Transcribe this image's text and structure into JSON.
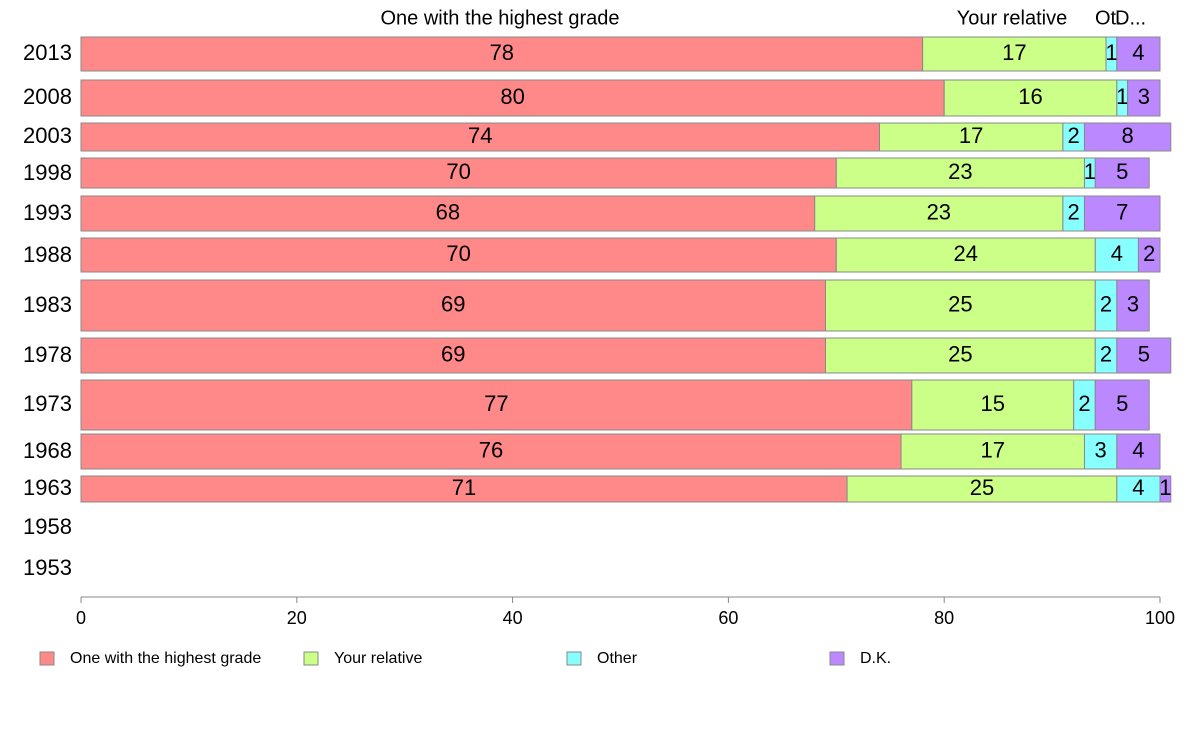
{
  "chart_data": {
    "type": "bar",
    "orientation": "horizontal",
    "stacked": true,
    "categories": [
      "2013",
      "2008",
      "2003",
      "1998",
      "1993",
      "1988",
      "1983",
      "1978",
      "1973",
      "1968",
      "1963",
      "1958",
      "1953"
    ],
    "series": [
      {
        "name": "One with the highest grade",
        "color": "#ff8888",
        "values": [
          78,
          80,
          74,
          70,
          68,
          70,
          69,
          69,
          77,
          76,
          71,
          null,
          null
        ]
      },
      {
        "name": "Your relative",
        "color": "#ccff88",
        "values": [
          17,
          16,
          17,
          23,
          23,
          24,
          25,
          25,
          15,
          17,
          25,
          null,
          null
        ]
      },
      {
        "name": "Other",
        "color": "#88ffff",
        "values": [
          1,
          1,
          2,
          1,
          2,
          4,
          2,
          2,
          2,
          3,
          4,
          null,
          null
        ]
      },
      {
        "name": "D.K.",
        "color": "#bb88ff",
        "values": [
          4,
          3,
          8,
          5,
          7,
          2,
          3,
          5,
          5,
          4,
          1,
          null,
          null
        ]
      }
    ],
    "top_labels": [
      "One with the highest grade",
      "Your relative",
      "Ot.",
      "D..."
    ],
    "xlim": [
      0,
      100
    ],
    "xticks": [
      0,
      20,
      40,
      60,
      80,
      100
    ],
    "grid": false,
    "legend_position": "bottom"
  }
}
